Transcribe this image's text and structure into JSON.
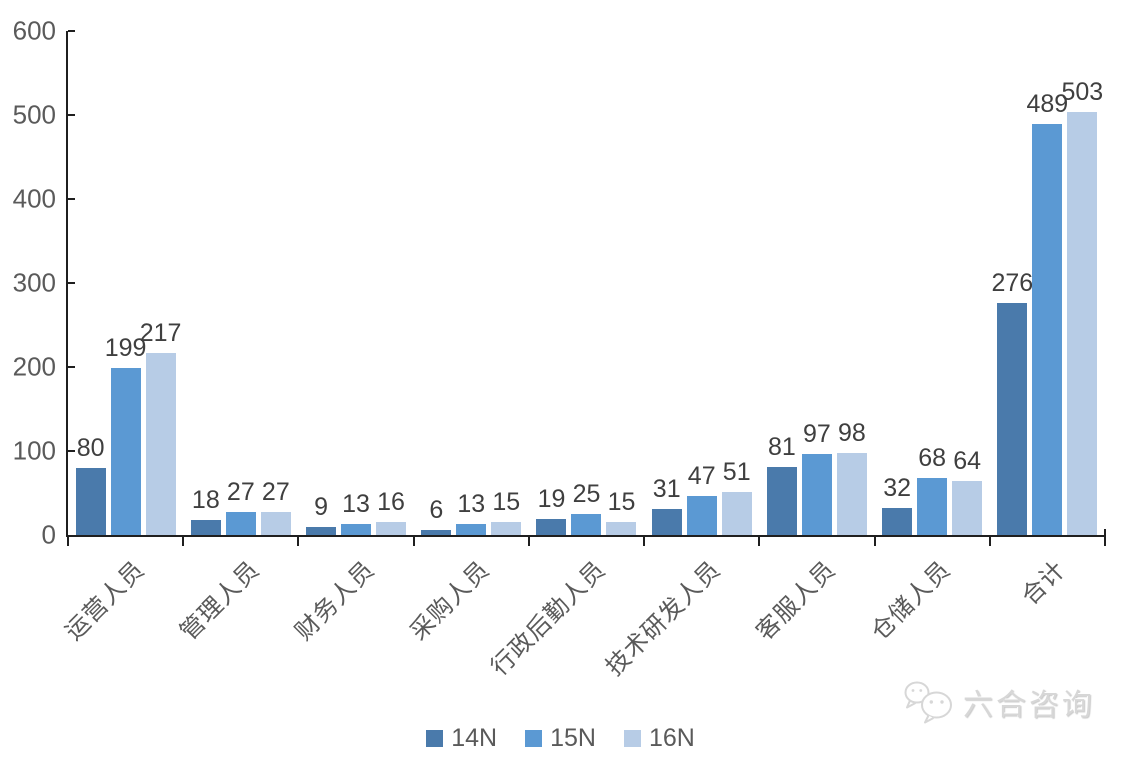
{
  "chart_data": {
    "type": "bar",
    "title": "",
    "xlabel": "",
    "ylabel": "",
    "categories": [
      "运营人员",
      "管理人员",
      "财务人员",
      "采购人员",
      "行政后勤人员",
      "技术研发人员",
      "客服人员",
      "仓储人员",
      "合计"
    ],
    "series": [
      {
        "name": "14N",
        "color": "#4A7AAB",
        "values": [
          80,
          18,
          9,
          6,
          19,
          31,
          81,
          32,
          276
        ]
      },
      {
        "name": "15N",
        "color": "#5B99D3",
        "values": [
          199,
          27,
          13,
          13,
          25,
          47,
          97,
          68,
          489
        ]
      },
      {
        "name": "16N",
        "color": "#B7CCE6",
        "values": [
          217,
          27,
          16,
          15,
          15,
          51,
          98,
          64,
          503
        ]
      }
    ],
    "ylim": [
      0,
      600
    ],
    "yticks": [
      0,
      100,
      200,
      300,
      400,
      500,
      600
    ],
    "grid": false,
    "legend_position": "bottom",
    "value_labels_shown": true
  },
  "watermark": {
    "text": "六合咨询",
    "icon": "wechat-icon"
  },
  "colors": {
    "axis": "#1f1f1f",
    "axis_tick_label": "#5a5a5a",
    "value_label": "#3f3f3f",
    "legend_text": "#5a5a5a",
    "watermark_text": "#d7d7d7",
    "background": "#ffffff"
  }
}
